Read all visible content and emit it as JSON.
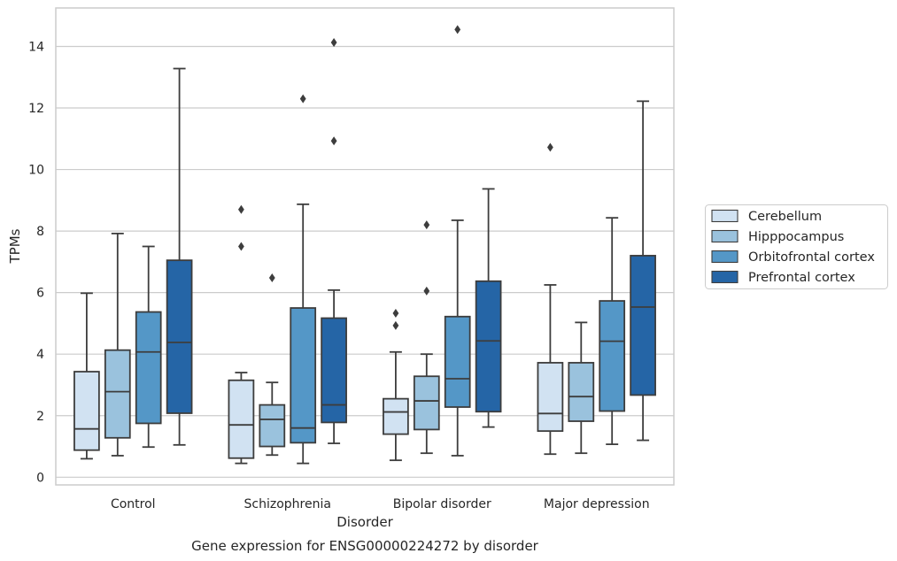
{
  "chart_data": {
    "type": "box",
    "title": "Gene expression for ENSG00000224272 by disorder",
    "xlabel": "Disorder",
    "ylabel": "TPMs",
    "ylim": [
      -0.25,
      15.25
    ],
    "yticks": [
      0,
      2,
      4,
      6,
      8,
      10,
      12,
      14
    ],
    "grid": "horizontal",
    "legend_position": "right",
    "categories": [
      "Control",
      "Schizophrenia",
      "Bipolar disorder",
      "Major depression"
    ],
    "series": [
      {
        "name": "Cerebellum",
        "color": "#d1e2f2",
        "boxes": [
          {
            "whislo": 0.6,
            "q1": 0.88,
            "med": 1.57,
            "q3": 3.43,
            "whishi": 5.98,
            "fliers": []
          },
          {
            "whislo": 0.45,
            "q1": 0.62,
            "med": 1.7,
            "q3": 3.15,
            "whishi": 3.4,
            "fliers": [
              7.5,
              8.7
            ]
          },
          {
            "whislo": 0.55,
            "q1": 1.4,
            "med": 2.12,
            "q3": 2.55,
            "whishi": 4.07,
            "fliers": [
              4.93,
              5.33
            ]
          },
          {
            "whislo": 0.75,
            "q1": 1.5,
            "med": 2.07,
            "q3": 3.72,
            "whishi": 6.25,
            "fliers": [
              10.72
            ]
          }
        ]
      },
      {
        "name": "Hipppocampus",
        "color": "#9ac2dd",
        "boxes": [
          {
            "whislo": 0.7,
            "q1": 1.28,
            "med": 2.78,
            "q3": 4.13,
            "whishi": 7.92,
            "fliers": []
          },
          {
            "whislo": 0.72,
            "q1": 1.0,
            "med": 1.88,
            "q3": 2.35,
            "whishi": 3.08,
            "fliers": [
              6.48
            ]
          },
          {
            "whislo": 0.78,
            "q1": 1.55,
            "med": 2.48,
            "q3": 3.28,
            "whishi": 4.0,
            "fliers": [
              6.05,
              8.2
            ]
          },
          {
            "whislo": 0.78,
            "q1": 1.82,
            "med": 2.62,
            "q3": 3.72,
            "whishi": 5.03,
            "fliers": []
          }
        ]
      },
      {
        "name": "Orbitofrontal cortex",
        "color": "#5497c7",
        "boxes": [
          {
            "whislo": 0.98,
            "q1": 1.75,
            "med": 4.07,
            "q3": 5.37,
            "whishi": 7.5,
            "fliers": []
          },
          {
            "whislo": 0.45,
            "q1": 1.12,
            "med": 1.6,
            "q3": 5.5,
            "whishi": 8.87,
            "fliers": [
              12.3
            ]
          },
          {
            "whislo": 0.7,
            "q1": 2.28,
            "med": 3.2,
            "q3": 5.22,
            "whishi": 8.35,
            "fliers": [
              14.55
            ]
          },
          {
            "whislo": 1.07,
            "q1": 2.15,
            "med": 4.42,
            "q3": 5.73,
            "whishi": 8.43,
            "fliers": []
          }
        ]
      },
      {
        "name": "Prefrontal cortex",
        "color": "#2565a6",
        "boxes": [
          {
            "whislo": 1.05,
            "q1": 2.08,
            "med": 4.38,
            "q3": 7.05,
            "whishi": 13.28,
            "fliers": []
          },
          {
            "whislo": 1.1,
            "q1": 1.78,
            "med": 2.35,
            "q3": 5.17,
            "whishi": 6.08,
            "fliers": [
              10.93,
              14.13
            ]
          },
          {
            "whislo": 1.63,
            "q1": 2.13,
            "med": 4.43,
            "q3": 6.37,
            "whishi": 9.37,
            "fliers": []
          },
          {
            "whislo": 1.2,
            "q1": 2.67,
            "med": 5.53,
            "q3": 7.2,
            "whishi": 12.22,
            "fliers": []
          }
        ]
      }
    ]
  }
}
